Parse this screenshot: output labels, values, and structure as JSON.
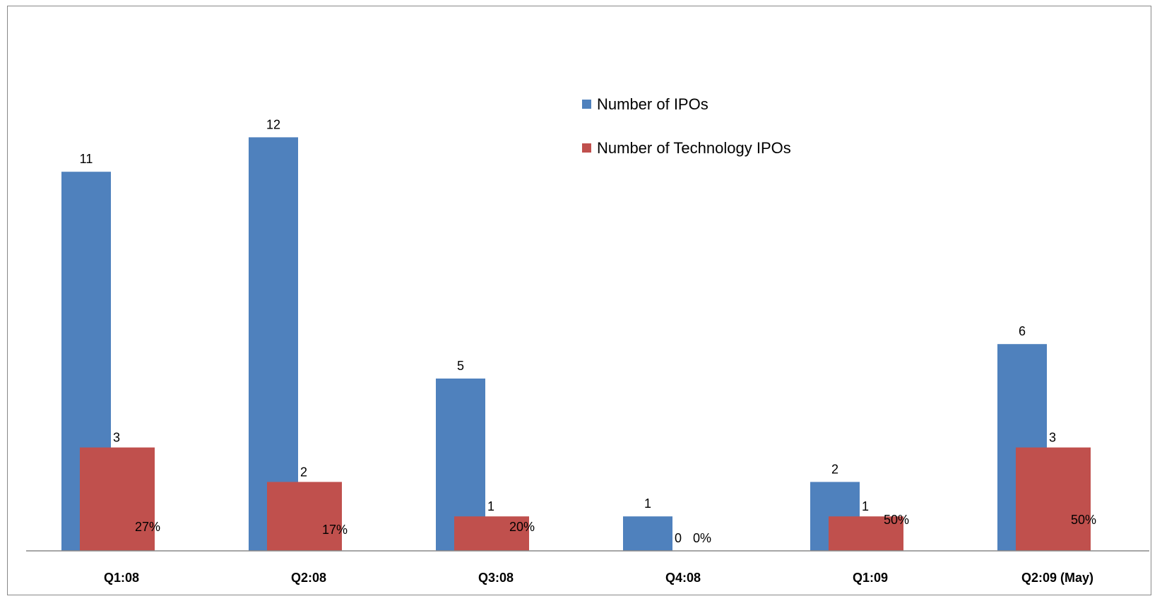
{
  "chart_data": {
    "type": "bar",
    "categories": [
      "Q1:08",
      "Q2:08",
      "Q3:08",
      "Q4:08",
      "Q1:09",
      "Q2:09 (May)"
    ],
    "series": [
      {
        "name": "Number of IPOs",
        "color": "#4F81BD",
        "values": [
          11,
          12,
          5,
          1,
          2,
          6
        ]
      },
      {
        "name": "Number of Technology IPOs",
        "color": "#C0504D",
        "values": [
          3,
          2,
          1,
          0,
          1,
          3
        ]
      }
    ],
    "percent_labels": [
      "27%",
      "17%",
      "20%",
      "0%",
      "50%",
      "50%"
    ],
    "ylim": [
      0,
      12.5
    ],
    "grid": false,
    "legend_position": "top-center"
  }
}
